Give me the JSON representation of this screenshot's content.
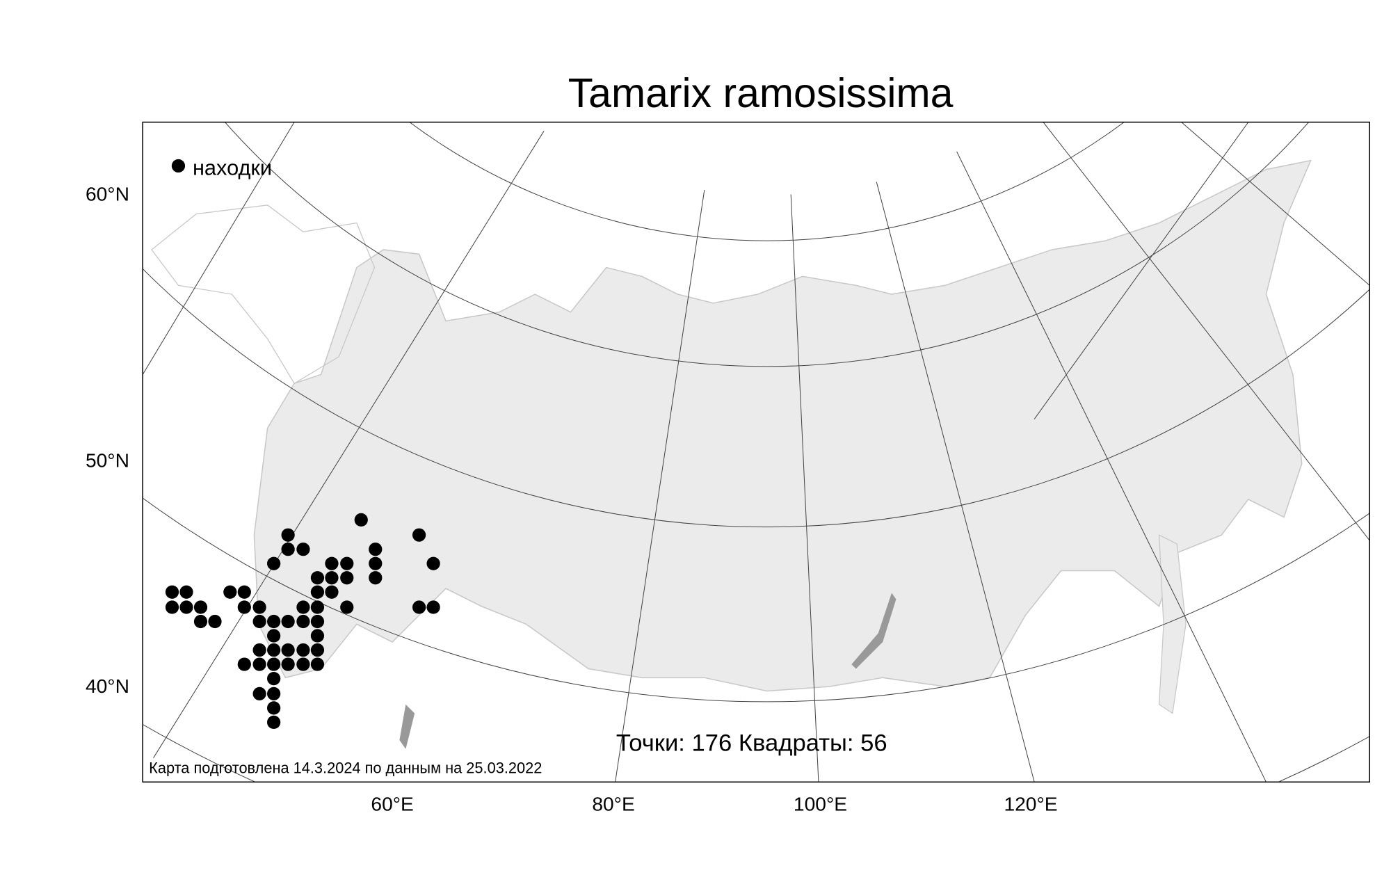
{
  "title": "Tamarix ramosissima",
  "legend": {
    "label": "находки"
  },
  "y_labels": [
    "60°N",
    "50°N",
    "40°N"
  ],
  "x_labels": [
    "60°E",
    "80°E",
    "100°E",
    "120°E"
  ],
  "stats": "Точки: 176 Квадраты: 56",
  "footer": "Карта подготовлена 14.3.2024 по данным на 25.03.2022"
}
